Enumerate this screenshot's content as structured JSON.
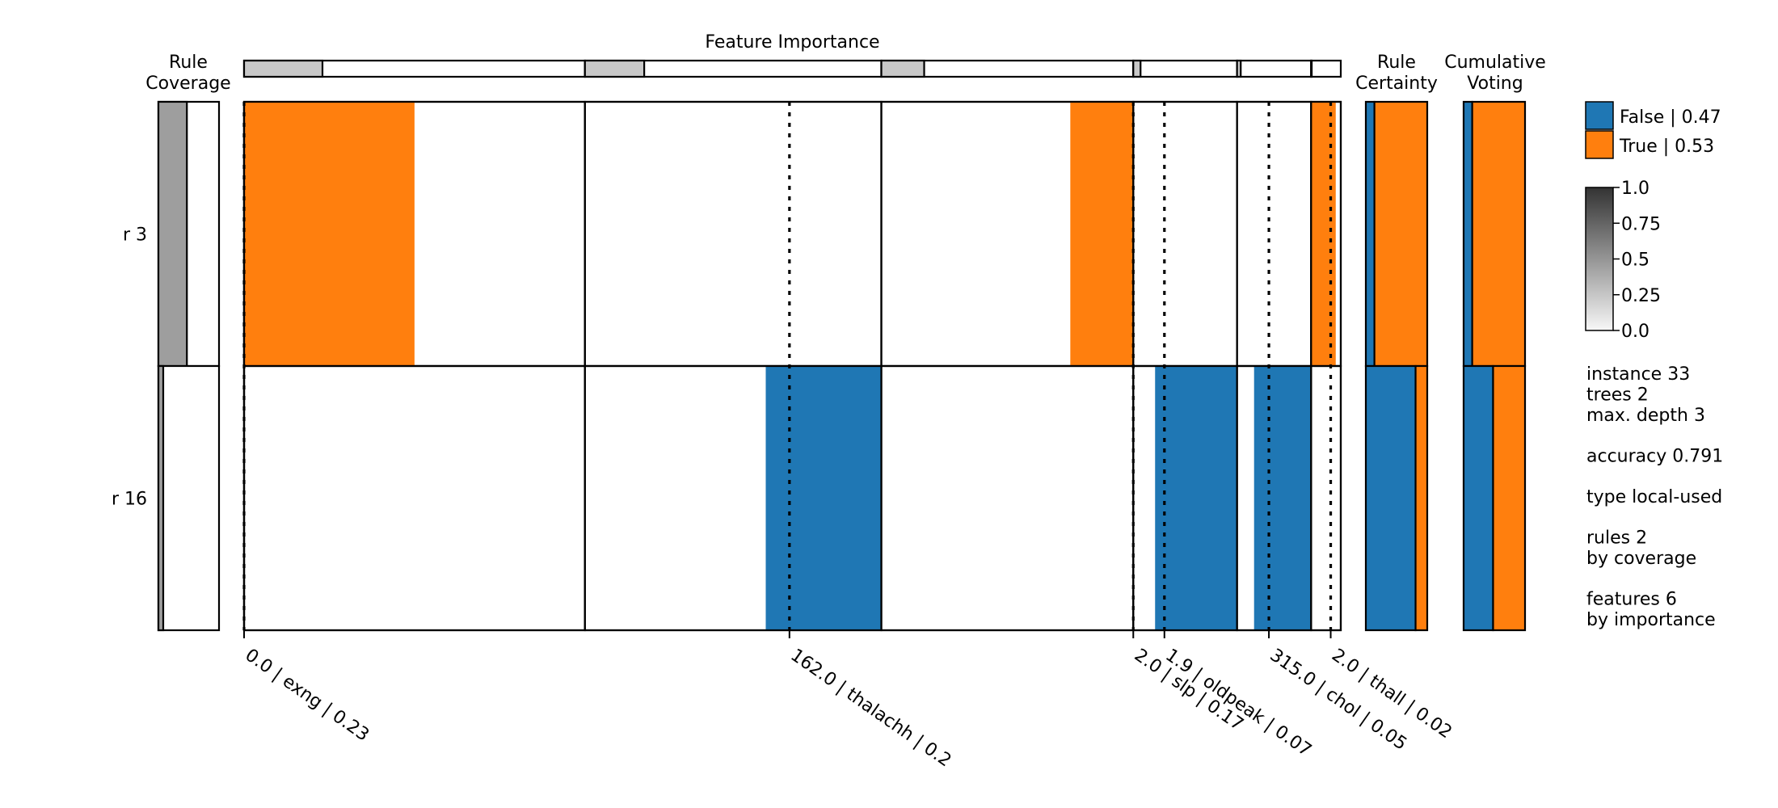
{
  "chart_data": {
    "type": "heatmap",
    "title": "Feature Importance",
    "rule_coverage_title": [
      "Rule",
      "Coverage"
    ],
    "rule_certainty_title": [
      "Rule",
      "Certainty"
    ],
    "cumulative_voting_title": [
      "Cumulative",
      "Voting"
    ],
    "rules": [
      {
        "label": "r 3",
        "coverage": 0.47,
        "certainty_false": 0.14,
        "certainty_true": 0.86,
        "voting_false": 0.14,
        "voting_true": 0.86
      },
      {
        "label": "r 16",
        "coverage": 0.08,
        "certainty_false": 0.81,
        "certainty_true": 0.19,
        "voting_false": 0.48,
        "voting_true": 0.52
      }
    ],
    "features": [
      {
        "name": "exng",
        "threshold": "0.0",
        "importance": "0.23",
        "imp": 0.23,
        "tick": "0.0 | exng | 0.23",
        "split": 0.0,
        "rules": [
          {
            "cls": "True",
            "start": 0.0,
            "end": 0.5
          },
          null
        ]
      },
      {
        "name": "thalachh",
        "threshold": "162.0",
        "importance": "0.2",
        "imp": 0.2,
        "tick": "162.0 | thalachh | 0.2",
        "split": 0.69,
        "rules": [
          null,
          {
            "cls": "False",
            "start": 0.61,
            "end": 1.0
          }
        ]
      },
      {
        "name": "slp",
        "threshold": "2.0",
        "importance": "0.17",
        "imp": 0.17,
        "tick": "2.0 | slp | 0.17",
        "split": 1.0,
        "rules": [
          {
            "cls": "True",
            "start": 0.75,
            "end": 1.0
          },
          null
        ]
      },
      {
        "name": "oldpeak",
        "threshold": "1.9",
        "importance": "0.07",
        "imp": 0.07,
        "tick": "1.9 | oldpeak | 0.07",
        "split": 0.3,
        "rules": [
          null,
          {
            "cls": "False",
            "start": 0.21,
            "end": 1.0
          }
        ]
      },
      {
        "name": "chol",
        "threshold": "315.0",
        "importance": "0.05",
        "imp": 0.05,
        "tick": "315.0 | chol | 0.05",
        "split": 0.43,
        "rules": [
          null,
          {
            "cls": "False",
            "start": 0.23,
            "end": 1.0
          }
        ]
      },
      {
        "name": "thall",
        "threshold": "2.0",
        "importance": "0.02",
        "imp": 0.02,
        "tick": "2.0 | thall | 0.02",
        "split": 0.66,
        "rules": [
          {
            "cls": "True",
            "start": 0.0,
            "end": 0.83
          },
          null
        ]
      }
    ],
    "legend": [
      {
        "label": "False | 0.47",
        "color": "#1f77b4"
      },
      {
        "label": "True | 0.53",
        "color": "#ff7f0e"
      }
    ],
    "colorbar_ticks": [
      "1.0",
      "0.75",
      "0.5",
      "0.25",
      "0.0"
    ],
    "info_lines": [
      [
        "instance 33",
        "trees 2",
        "max. depth 3"
      ],
      [
        "accuracy 0.791"
      ],
      [
        "type local-used"
      ],
      [
        "rules 2",
        "by coverage"
      ],
      [
        "features 6",
        "by importance"
      ]
    ],
    "colors": {
      "False": "#1f77b4",
      "True": "#ff7f0e",
      "coverage": "#9e9e9e",
      "importance": "#c8c8c8"
    }
  }
}
